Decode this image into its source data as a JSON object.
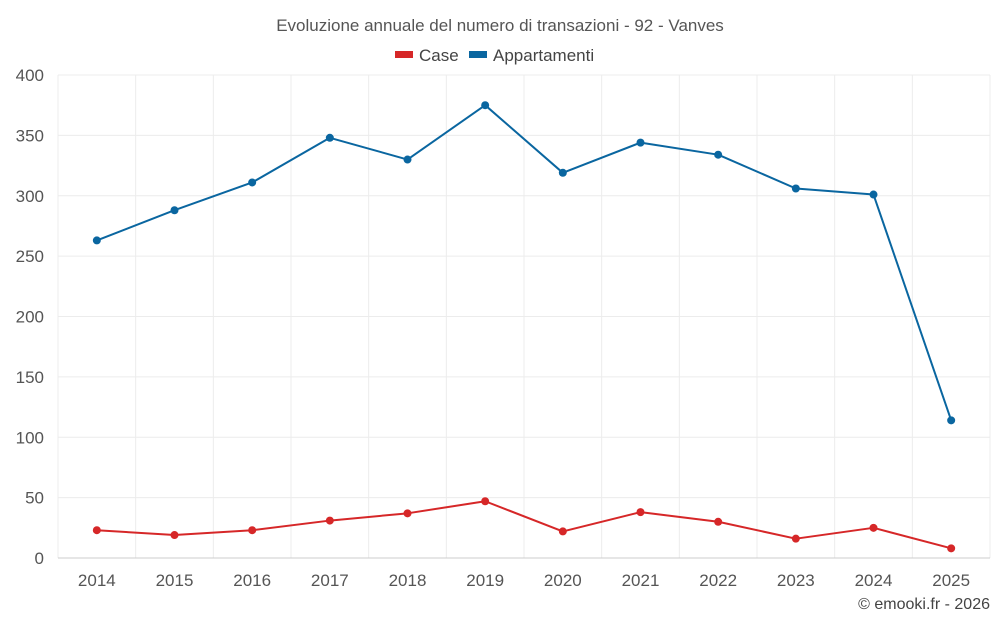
{
  "chart_data": {
    "type": "line",
    "title": "Evoluzione annuale del numero di transazioni - 92 - Vanves",
    "xlabel": "",
    "ylabel": "",
    "ylim": [
      0,
      400
    ],
    "yticks": [
      0,
      50,
      100,
      150,
      200,
      250,
      300,
      350,
      400
    ],
    "categories": [
      "2014",
      "2015",
      "2016",
      "2017",
      "2018",
      "2019",
      "2020",
      "2021",
      "2022",
      "2023",
      "2024",
      "2025"
    ],
    "grid": true,
    "legend_position": "top-center",
    "series": [
      {
        "name": "Case",
        "color": "#d62728",
        "values": [
          23,
          19,
          23,
          31,
          37,
          47,
          22,
          38,
          30,
          16,
          25,
          8
        ]
      },
      {
        "name": "Appartamenti",
        "color": "#0a66a0",
        "values": [
          263,
          288,
          311,
          348,
          330,
          375,
          319,
          344,
          334,
          306,
          301,
          114
        ]
      }
    ],
    "credit": "© emooki.fr - 2026"
  }
}
